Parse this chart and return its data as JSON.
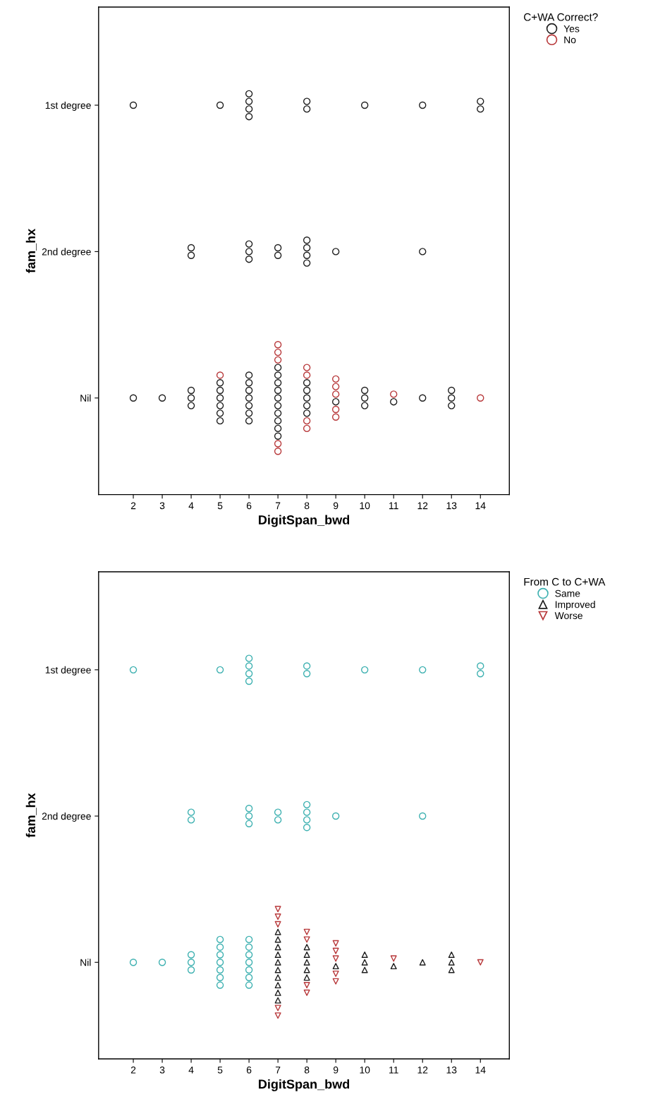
{
  "chart_data": [
    {
      "type": "scatter",
      "orientation": "horizontal",
      "xlabel": "DigitSpan_bwd",
      "ylabel": "fam_hx",
      "legend_title": "C+WA Correct?",
      "legend": "top right",
      "xlim": [
        0.8,
        15.0
      ],
      "xticks": [
        2,
        3,
        4,
        5,
        6,
        7,
        8,
        9,
        10,
        11,
        12,
        13,
        14
      ],
      "categories": [
        "1st degree",
        "2nd degree",
        "Nil"
      ],
      "series": [
        {
          "name": "Yes",
          "color": "#1f1f1f",
          "marker": "circle",
          "x": [
            "1st degree",
            "1st degree",
            "1st degree",
            "1st degree",
            "1st degree",
            "1st degree",
            "1st degree",
            "1st degree",
            "1st degree",
            "1st degree",
            "1st degree",
            "1st degree",
            "2nd degree",
            "2nd degree",
            "2nd degree",
            "2nd degree",
            "2nd degree",
            "2nd degree",
            "2nd degree",
            "2nd degree",
            "2nd degree",
            "2nd degree",
            "2nd degree",
            "2nd degree",
            "2nd degree",
            "Nil",
            "Nil",
            "Nil",
            "Nil",
            "Nil",
            "Nil",
            "Nil",
            "Nil",
            "Nil",
            "Nil",
            "Nil",
            "Nil",
            "Nil",
            "Nil",
            "Nil",
            "Nil",
            "Nil",
            "Nil",
            "Nil",
            "Nil",
            "Nil",
            "Nil",
            "Nil",
            "Nil",
            "Nil",
            "Nil",
            "Nil",
            "Nil",
            "Nil",
            "Nil",
            "Nil",
            "Nil",
            "Nil",
            "Nil",
            "Nil",
            "Nil",
            "Nil",
            "Nil",
            "Nil",
            "Nil",
            "Nil",
            "Nil"
          ],
          "values": [
            2,
            5,
            6,
            6,
            6,
            6,
            8,
            8,
            10,
            12,
            14,
            14,
            4,
            4,
            6,
            6,
            6,
            7,
            7,
            8,
            8,
            8,
            8,
            9,
            12,
            2,
            3,
            4,
            4,
            4,
            5,
            5,
            5,
            5,
            5,
            5,
            6,
            6,
            6,
            6,
            6,
            6,
            6,
            7,
            7,
            7,
            7,
            7,
            7,
            7,
            7,
            7,
            7,
            8,
            8,
            8,
            8,
            8,
            9,
            10,
            10,
            10,
            11,
            12,
            13,
            13,
            13
          ]
        },
        {
          "name": "No",
          "color": "#b8393b",
          "marker": "circle",
          "x": [
            "Nil",
            "Nil",
            "Nil",
            "Nil",
            "Nil",
            "Nil",
            "Nil",
            "Nil",
            "Nil",
            "Nil",
            "Nil",
            "Nil",
            "Nil",
            "Nil",
            "Nil",
            "Nil",
            "Nil"
          ],
          "values": [
            5,
            7,
            7,
            7,
            7,
            7,
            8,
            8,
            8,
            8,
            9,
            9,
            9,
            9,
            9,
            11,
            14
          ]
        }
      ]
    },
    {
      "type": "scatter",
      "orientation": "horizontal",
      "xlabel": "DigitSpan_bwd",
      "ylabel": "fam_hx",
      "legend_title": "From C to C+WA",
      "legend": "top right",
      "xlim": [
        0.8,
        15.0
      ],
      "xticks": [
        2,
        3,
        4,
        5,
        6,
        7,
        8,
        9,
        10,
        11,
        12,
        13,
        14
      ],
      "categories": [
        "1st degree",
        "2nd degree",
        "Nil"
      ],
      "series": [
        {
          "name": "Same",
          "color": "#3eb1b1",
          "marker": "circle",
          "x": [
            "1st degree",
            "1st degree",
            "1st degree",
            "1st degree",
            "1st degree",
            "1st degree",
            "1st degree",
            "1st degree",
            "1st degree",
            "1st degree",
            "1st degree",
            "1st degree",
            "2nd degree",
            "2nd degree",
            "2nd degree",
            "2nd degree",
            "2nd degree",
            "2nd degree",
            "2nd degree",
            "2nd degree",
            "2nd degree",
            "2nd degree",
            "2nd degree",
            "2nd degree",
            "2nd degree",
            "Nil",
            "Nil",
            "Nil",
            "Nil",
            "Nil",
            "Nil",
            "Nil",
            "Nil",
            "Nil",
            "Nil",
            "Nil",
            "Nil",
            "Nil",
            "Nil",
            "Nil",
            "Nil",
            "Nil",
            "Nil",
            "Nil"
          ],
          "values": [
            2,
            5,
            6,
            6,
            6,
            6,
            8,
            8,
            10,
            12,
            14,
            14,
            4,
            4,
            6,
            6,
            6,
            7,
            7,
            8,
            8,
            8,
            8,
            9,
            12,
            2,
            3,
            4,
            4,
            4,
            5,
            5,
            5,
            5,
            5,
            5,
            5,
            6,
            6,
            6,
            6,
            6,
            6,
            6
          ]
        },
        {
          "name": "Improved",
          "color": "#1f1f1f",
          "marker": "triangle",
          "x": [
            "Nil",
            "Nil",
            "Nil",
            "Nil",
            "Nil",
            "Nil",
            "Nil",
            "Nil",
            "Nil",
            "Nil",
            "Nil",
            "Nil",
            "Nil",
            "Nil",
            "Nil",
            "Nil",
            "Nil",
            "Nil",
            "Nil",
            "Nil",
            "Nil",
            "Nil",
            "Nil",
            "Nil"
          ],
          "values": [
            7,
            7,
            7,
            7,
            7,
            7,
            7,
            7,
            7,
            7,
            8,
            8,
            8,
            8,
            8,
            9,
            10,
            10,
            10,
            11,
            12,
            13,
            13,
            13
          ]
        },
        {
          "name": "Worse",
          "color": "#b8393b",
          "marker": "triangle_down",
          "x": [
            "Nil",
            "Nil",
            "Nil",
            "Nil",
            "Nil",
            "Nil",
            "Nil",
            "Nil",
            "Nil",
            "Nil",
            "Nil",
            "Nil",
            "Nil",
            "Nil",
            "Nil",
            "Nil"
          ],
          "values": [
            7,
            7,
            7,
            7,
            7,
            8,
            8,
            8,
            8,
            9,
            9,
            9,
            9,
            9,
            11,
            14
          ]
        }
      ]
    }
  ]
}
